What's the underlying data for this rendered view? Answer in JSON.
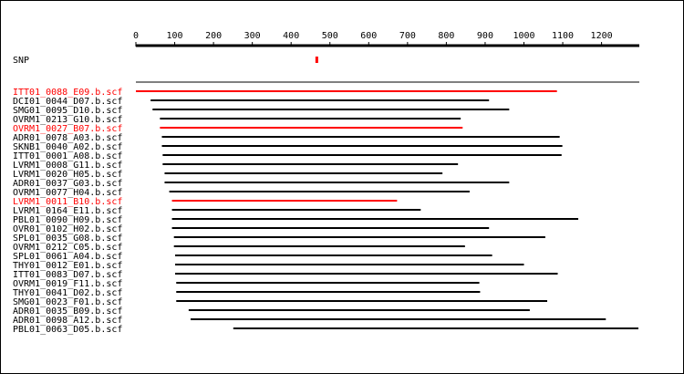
{
  "scale": {
    "tick_labels": [
      "0",
      "100",
      "200",
      "300",
      "400",
      "500",
      "600",
      "700",
      "800",
      "900",
      "1000",
      "1100",
      "1200"
    ],
    "tick_values": [
      0,
      100,
      200,
      300,
      400,
      500,
      600,
      700,
      800,
      900,
      1000,
      1100,
      1200
    ],
    "max": 1295
  },
  "snp": {
    "label": "SNP",
    "position": 465
  },
  "colors": {
    "highlight": "#ff0000",
    "normal": "#000000"
  },
  "reads": [
    {
      "name": "ITT01_0088_E09.b.scf",
      "start": 0,
      "end": 1085,
      "highlight": true
    },
    {
      "name": "DCI01_0044_D07.b.scf",
      "start": 38,
      "end": 910,
      "highlight": false
    },
    {
      "name": "SMG01_0095_D10.b.scf",
      "start": 43,
      "end": 962,
      "highlight": false
    },
    {
      "name": "OVRM1_0213_G10.b.scf",
      "start": 62,
      "end": 837,
      "highlight": false
    },
    {
      "name": "OVRM1_0027_B07.b.scf",
      "start": 62,
      "end": 842,
      "highlight": true
    },
    {
      "name": "ADR01_0078_A03.b.scf",
      "start": 67,
      "end": 1092,
      "highlight": false
    },
    {
      "name": "SKNB1_0040_A02.b.scf",
      "start": 67,
      "end": 1099,
      "highlight": false
    },
    {
      "name": "ITT01_0001_A08.b.scf",
      "start": 69,
      "end": 1097,
      "highlight": false
    },
    {
      "name": "LVRM1_0008_G11.b.scf",
      "start": 69,
      "end": 830,
      "highlight": false
    },
    {
      "name": "LVRM1_0020_H05.b.scf",
      "start": 74,
      "end": 790,
      "highlight": false
    },
    {
      "name": "ADR01_0037_G03.b.scf",
      "start": 74,
      "end": 962,
      "highlight": false
    },
    {
      "name": "OVRM1_0077_H04.b.scf",
      "start": 86,
      "end": 860,
      "highlight": false
    },
    {
      "name": "LVRM1_0011_B10.b.scf",
      "start": 93,
      "end": 673,
      "highlight": true
    },
    {
      "name": "LVRM1_0164_E11.b.scf",
      "start": 93,
      "end": 734,
      "highlight": false
    },
    {
      "name": "PBL01_0090_H09.b.scf",
      "start": 93,
      "end": 1140,
      "highlight": false
    },
    {
      "name": "OVR01_0102_H02.b.scf",
      "start": 93,
      "end": 910,
      "highlight": false
    },
    {
      "name": "SPL01_0035_G08.b.scf",
      "start": 98,
      "end": 1055,
      "highlight": false
    },
    {
      "name": "OVRM1_0212_C05.b.scf",
      "start": 98,
      "end": 848,
      "highlight": false
    },
    {
      "name": "SPL01_0061_A04.b.scf",
      "start": 101,
      "end": 918,
      "highlight": false
    },
    {
      "name": "THY01_0012_E01.b.scf",
      "start": 101,
      "end": 1000,
      "highlight": false
    },
    {
      "name": "ITT01_0083_D07.b.scf",
      "start": 101,
      "end": 1087,
      "highlight": false
    },
    {
      "name": "OVRM1_0019_F11.b.scf",
      "start": 104,
      "end": 885,
      "highlight": false
    },
    {
      "name": "THY01_0041_D02.b.scf",
      "start": 104,
      "end": 887,
      "highlight": false
    },
    {
      "name": "SMG01_0023_F01.b.scf",
      "start": 104,
      "end": 1060,
      "highlight": false
    },
    {
      "name": "ADR01_0035_B09.b.scf",
      "start": 136,
      "end": 1015,
      "highlight": false
    },
    {
      "name": "ADR01_0098_A12.b.scf",
      "start": 141,
      "end": 1211,
      "highlight": false
    },
    {
      "name": "PBL01_0063_D05.b.scf",
      "start": 251,
      "end": 1295,
      "highlight": false
    }
  ]
}
